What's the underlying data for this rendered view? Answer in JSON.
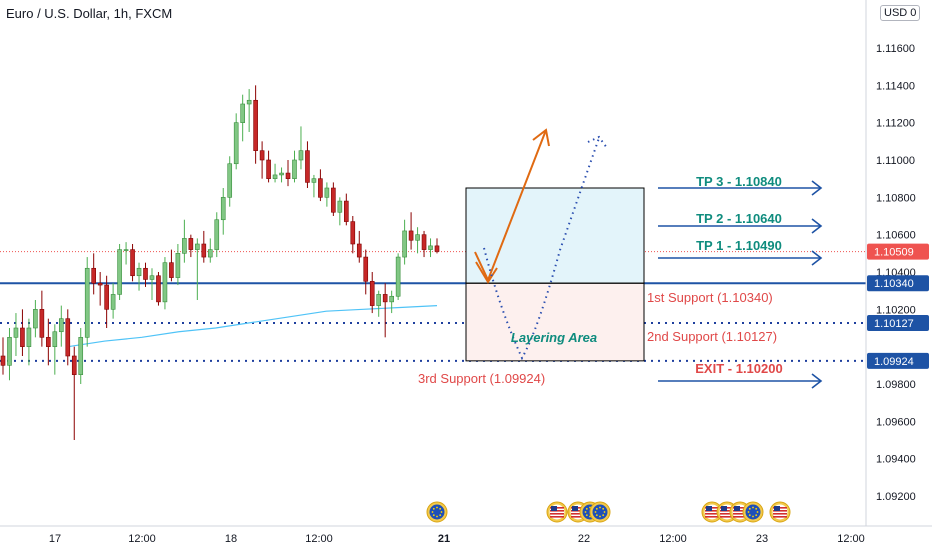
{
  "header": {
    "title": "Euro / U.S. Dollar, 1h, FXCM",
    "currency": "USD",
    "currency_suffix": "0"
  },
  "colors": {
    "up": "#26a69a",
    "down": "#ef5350",
    "candle_up_fill": "#81c784",
    "candle_down_fill": "#c62828",
    "support_line": "#1e53a5",
    "dotted_line": "#1e3f9e",
    "price_line": "#ef5350",
    "ma_line": "#4fc3f7",
    "target_arrow": "#1e53a5",
    "tp_text": "#0f8c7e",
    "support_text": "#e04848",
    "orange_arrow": "#e06a12",
    "blue_arrow": "#2b4fb0",
    "box_top_fill": "#e3f4fa",
    "box_bottom_fill": "#fdf0ee",
    "axis_text": "#131722",
    "badge_bg": "#1e53a5"
  },
  "chart_data": {
    "type": "candlestick",
    "symbol": "Euro / U.S. Dollar, 1h, FXCM",
    "y_axis_ticks": [
      "1.11600",
      "1.11400",
      "1.11200",
      "1.11000",
      "1.10800",
      "1.10600",
      "1.10400",
      "1.10200",
      "1.09800",
      "1.09600",
      "1.09400",
      "1.09200"
    ],
    "y_axis_values": [
      1.116,
      1.114,
      1.112,
      1.11,
      1.108,
      1.106,
      1.104,
      1.102,
      1.098,
      1.096,
      1.094,
      1.092
    ],
    "ylim": [
      1.0905,
      1.1185
    ],
    "x_axis_ticks": [
      "17",
      "12:00",
      "18",
      "12:00",
      "21",
      "22",
      "12:00",
      "23",
      "12:00"
    ],
    "x_axis_ticks_bold": [
      false,
      false,
      false,
      false,
      true,
      false,
      false,
      false,
      false
    ],
    "candles": [
      [
        1.0995,
        1.1005,
        1.0985,
        1.099
      ],
      [
        1.099,
        1.101,
        1.0982,
        1.1005
      ],
      [
        1.1005,
        1.1018,
        1.0995,
        1.101
      ],
      [
        1.101,
        1.102,
        1.0995,
        1.1
      ],
      [
        1.1,
        1.1015,
        1.099,
        1.101
      ],
      [
        1.101,
        1.1025,
        1.1005,
        1.102
      ],
      [
        1.102,
        1.103,
        1.1,
        1.1005
      ],
      [
        1.1005,
        1.1015,
        1.099,
        1.1
      ],
      [
        1.1,
        1.1012,
        1.0985,
        1.1008
      ],
      [
        1.1008,
        1.1022,
        1.1,
        1.1015
      ],
      [
        1.1015,
        1.102,
        1.099,
        1.0995
      ],
      [
        1.0995,
        1.1,
        1.095,
        1.0985
      ],
      [
        1.0985,
        1.101,
        1.098,
        1.1005
      ],
      [
        1.1005,
        1.1048,
        1.1,
        1.1042
      ],
      [
        1.1042,
        1.105,
        1.1028,
        1.1034
      ],
      [
        1.1034,
        1.104,
        1.1022,
        1.1033
      ],
      [
        1.1033,
        1.1038,
        1.101,
        1.102
      ],
      [
        1.102,
        1.1034,
        1.1015,
        1.1028
      ],
      [
        1.1028,
        1.1055,
        1.1025,
        1.1052
      ],
      [
        1.1052,
        1.1056,
        1.1044,
        1.1052
      ],
      [
        1.1052,
        1.1055,
        1.1035,
        1.1038
      ],
      [
        1.1038,
        1.1045,
        1.103,
        1.1042
      ],
      [
        1.1042,
        1.1045,
        1.1032,
        1.1036
      ],
      [
        1.1036,
        1.1042,
        1.1025,
        1.1038
      ],
      [
        1.1038,
        1.104,
        1.1022,
        1.1024
      ],
      [
        1.1024,
        1.1048,
        1.102,
        1.1045
      ],
      [
        1.1045,
        1.1052,
        1.1035,
        1.1037
      ],
      [
        1.1037,
        1.1055,
        1.1033,
        1.105
      ],
      [
        1.105,
        1.1068,
        1.1045,
        1.1058
      ],
      [
        1.1058,
        1.106,
        1.1048,
        1.1052
      ],
      [
        1.1052,
        1.1058,
        1.1025,
        1.1055
      ],
      [
        1.1055,
        1.1062,
        1.1045,
        1.1048
      ],
      [
        1.1048,
        1.1058,
        1.1045,
        1.1052
      ],
      [
        1.1052,
        1.1072,
        1.1048,
        1.1068
      ],
      [
        1.1068,
        1.1085,
        1.106,
        1.108
      ],
      [
        1.108,
        1.1102,
        1.1075,
        1.1098
      ],
      [
        1.1098,
        1.1125,
        1.1095,
        1.112
      ],
      [
        1.112,
        1.1135,
        1.111,
        1.113
      ],
      [
        1.113,
        1.1138,
        1.1115,
        1.1132
      ],
      [
        1.1132,
        1.114,
        1.1098,
        1.1105
      ],
      [
        1.1105,
        1.111,
        1.109,
        1.11
      ],
      [
        1.11,
        1.1105,
        1.1088,
        1.109
      ],
      [
        1.109,
        1.1098,
        1.1088,
        1.1092
      ],
      [
        1.1092,
        1.1096,
        1.1088,
        1.1093
      ],
      [
        1.1093,
        1.11,
        1.1086,
        1.109
      ],
      [
        1.109,
        1.1105,
        1.1088,
        1.11
      ],
      [
        1.11,
        1.1118,
        1.1095,
        1.1105
      ],
      [
        1.1105,
        1.111,
        1.1085,
        1.1088
      ],
      [
        1.1088,
        1.1092,
        1.108,
        1.109
      ],
      [
        1.109,
        1.1095,
        1.1078,
        1.108
      ],
      [
        1.108,
        1.1088,
        1.1075,
        1.1085
      ],
      [
        1.1085,
        1.1088,
        1.107,
        1.1072
      ],
      [
        1.1072,
        1.108,
        1.1065,
        1.1078
      ],
      [
        1.1078,
        1.1082,
        1.1065,
        1.1067
      ],
      [
        1.1067,
        1.107,
        1.105,
        1.1055
      ],
      [
        1.1055,
        1.1062,
        1.1045,
        1.1048
      ],
      [
        1.1048,
        1.1052,
        1.1028,
        1.1035
      ],
      [
        1.1035,
        1.104,
        1.1018,
        1.1022
      ],
      [
        1.1022,
        1.103,
        1.1016,
        1.1028
      ],
      [
        1.1028,
        1.1034,
        1.1005,
        1.1024
      ],
      [
        1.1024,
        1.103,
        1.1018,
        1.1027
      ],
      [
        1.1027,
        1.105,
        1.1025,
        1.1048
      ],
      [
        1.1048,
        1.1068,
        1.1044,
        1.1062
      ],
      [
        1.1062,
        1.1072,
        1.1052,
        1.1057
      ],
      [
        1.1057,
        1.1064,
        1.105,
        1.106
      ],
      [
        1.106,
        1.1062,
        1.1048,
        1.1052
      ],
      [
        1.1052,
        1.1058,
        1.1048,
        1.1054
      ],
      [
        1.1054,
        1.1058,
        1.105,
        1.1051
      ]
    ],
    "moving_average": [
      [
        1.1,
        1.1003,
        1.1005,
        1.1008,
        1.101,
        1.1013,
        1.1016,
        1.1019,
        1.102,
        1.1021,
        1.1022
      ]
    ],
    "current_price": 1.10509,
    "support_level": 1.1034,
    "dotted_levels": [
      1.10127,
      1.09924
    ]
  },
  "badges": [
    {
      "value": "1.10509",
      "price": 1.10509,
      "color": "#ef5350"
    },
    {
      "value": "1.10340",
      "price": 1.1034,
      "color": "#1e53a5"
    },
    {
      "value": "1.10127",
      "price": 1.10127,
      "color": "#1e53a5"
    },
    {
      "value": "1.09924",
      "price": 1.09924,
      "color": "#1e53a5"
    }
  ],
  "annotations": {
    "tp3": "TP 3 - 1.10840",
    "tp2": "TP 2 - 1.10640",
    "tp1": "TP 1 - 1.10490",
    "exit": "EXIT - 1.10200",
    "support1": "1st Support (1.10340)",
    "support2": "2nd Support (1.10127)",
    "support3": "3rd Support (1.09924)",
    "layering": "Layering Area"
  },
  "event_icons": [
    {
      "name": "eu-flag-icon"
    },
    {
      "name": "us-flag-icon"
    },
    {
      "name": "us-flag-icon"
    },
    {
      "name": "eu-flag-icon"
    },
    {
      "name": "eu-flag-icon"
    },
    {
      "name": "us-flag-icon"
    },
    {
      "name": "us-flag-icon"
    },
    {
      "name": "us-flag-icon"
    },
    {
      "name": "eu-flag-icon"
    },
    {
      "name": "us-flag-icon"
    }
  ]
}
